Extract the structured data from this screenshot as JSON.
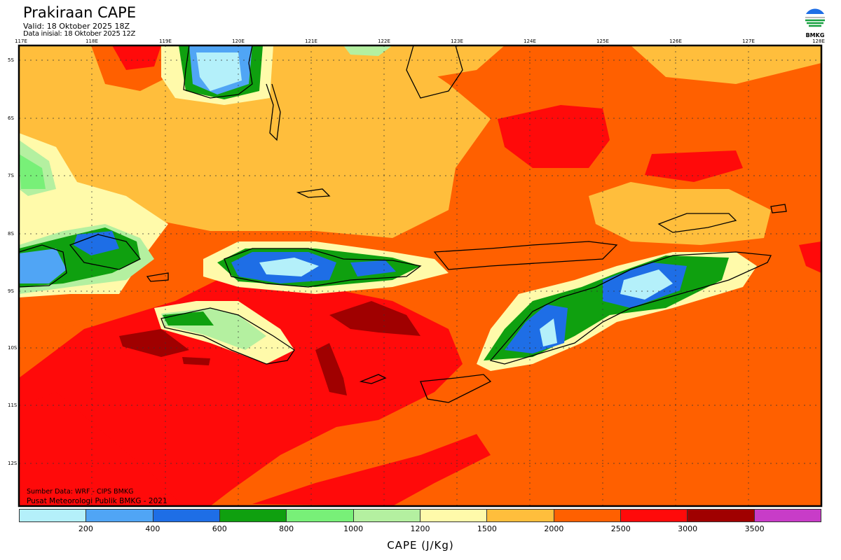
{
  "header": {
    "title": "Prakiraan CAPE",
    "valid": "Valid: 18 Oktober 2025 18Z",
    "initial": "Data inisial: 18 Oktober 2025 12Z",
    "logo_text": "BMKG"
  },
  "map": {
    "longitude_labels": [
      "117E",
      "118E",
      "119E",
      "120E",
      "121E",
      "122E",
      "123E",
      "124E",
      "125E",
      "126E",
      "127E",
      "128E"
    ],
    "latitude_labels": [
      "5S",
      "6S",
      "7S",
      "8S",
      "9S",
      "10S",
      "11S",
      "12S"
    ],
    "credits": {
      "source": "Sumber Data: WRF - CIPS BMKG",
      "publisher": "Pusat Meteorologi Publik BMKG - 2021"
    }
  },
  "legend": {
    "title": "CAPE (J/Kg)",
    "ticks": [
      "200",
      "400",
      "600",
      "800",
      "1000",
      "1200",
      "1500",
      "2000",
      "2500",
      "3000",
      "3500"
    ],
    "colors": [
      "#b4f0fa",
      "#50a5f5",
      "#1e6ee6",
      "#0fa00f",
      "#78f078",
      "#b4f0a0",
      "#fffaaa",
      "#ffbe3c",
      "#ff6000",
      "#ff0a0a",
      "#a00000",
      "#c83cc8"
    ]
  }
}
